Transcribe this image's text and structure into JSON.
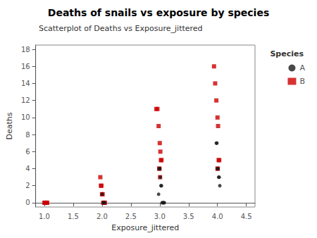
{
  "chart_data": {
    "type": "scatter",
    "title": "Deaths of snails vs exposure by species",
    "subtitle": "Scatterplot of Deaths vs Exposure_jittered",
    "xlabel": "Exposure_jittered",
    "ylabel": "Deaths",
    "legend_title": "Species",
    "legend": "upper right",
    "legend_order": [
      "A",
      "B"
    ],
    "grid": false,
    "xlim": [
      0.85,
      4.65
    ],
    "ylim": [
      -0.5,
      18.5
    ],
    "xticks": [
      {
        "value": 1.0,
        "label": "1.0"
      },
      1.5,
      {
        "value": 2.0,
        "label": "2.0"
      },
      2.5,
      {
        "value": 3.0,
        "label": "3.0"
      },
      3.5,
      {
        "value": 4.0,
        "label": "4.0"
      },
      4.5
    ],
    "yticks": [
      0,
      2,
      4,
      6,
      8,
      10,
      12,
      14,
      16,
      18
    ],
    "series": [
      {
        "name": "B",
        "color": "#cc0000",
        "marker": "square",
        "x": [
          1.0,
          1.01,
          1.02,
          1.03,
          1.04,
          1.05,
          1.97,
          1.98,
          1.99,
          2.0,
          2.01,
          2.02,
          2.03,
          2.04,
          2.05,
          2.94,
          2.96,
          2.98,
          3.0,
          3.01,
          3.02,
          3.03,
          2.99,
          2.995,
          3.005,
          3.94,
          3.96,
          3.98,
          4.0,
          4.01,
          4.02,
          4.03,
          4.0,
          4.005
        ],
        "values": [
          0,
          0,
          0,
          0,
          0,
          0,
          3,
          2,
          2,
          1,
          1,
          0,
          0,
          0,
          0,
          11,
          11,
          9,
          7,
          6,
          5,
          5,
          4,
          4,
          3,
          16,
          14,
          12,
          10,
          9,
          5,
          5,
          4,
          4
        ]
      },
      {
        "name": "A",
        "color": "#1a1a1a",
        "marker": "circle",
        "x": [
          2.0,
          2.02,
          2.03,
          2.04,
          2.98,
          2.99,
          3.0,
          3.01,
          3.02,
          3.03,
          3.04,
          3.05,
          3.06,
          3.07,
          3.08,
          3.98,
          3.99,
          4.0,
          4.01,
          4.02,
          4.03,
          4.04
        ],
        "values": [
          1,
          0,
          0,
          0,
          1,
          4,
          4,
          3,
          2,
          2,
          0,
          0,
          0,
          0,
          0,
          7,
          7,
          4,
          4,
          3,
          3,
          2
        ]
      }
    ]
  }
}
